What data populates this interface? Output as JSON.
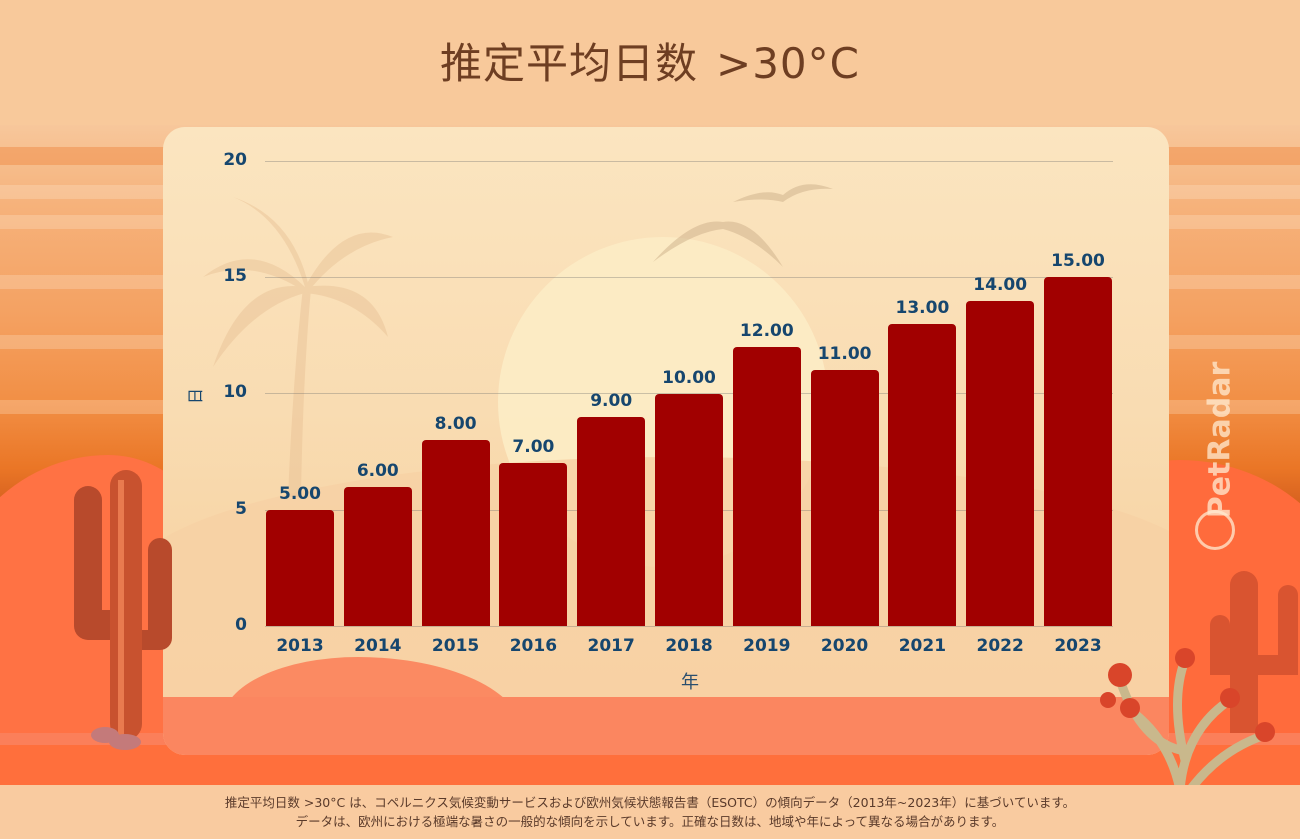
{
  "title": {
    "main": "推定平均日数",
    "suffix": ">30°C"
  },
  "chart_data": {
    "type": "bar",
    "title": "推定平均日数 >30°C",
    "xlabel": "年",
    "ylabel": "日",
    "categories": [
      "2013",
      "2014",
      "2015",
      "2016",
      "2017",
      "2018",
      "2019",
      "2020",
      "2021",
      "2022",
      "2023"
    ],
    "values": [
      5,
      6,
      8,
      7,
      9,
      10,
      12,
      11,
      13,
      14,
      15
    ],
    "value_labels": [
      "5.00",
      "6.00",
      "8.00",
      "7.00",
      "9.00",
      "10.00",
      "12.00",
      "11.00",
      "13.00",
      "14.00",
      "15.00"
    ],
    "yticks": [
      "0",
      "5",
      "10",
      "15",
      "20"
    ],
    "ylim": [
      0,
      20
    ],
    "grid": true,
    "legend": "none",
    "bar_color": "#a10000"
  },
  "watermark": {
    "label": "PetRadar"
  },
  "footer": {
    "line1": "推定平均日数 >30°C は、コペルニクス気候変動サービスおよび欧州気候状態報告書（ESOTC）の傾向データ（2013年~2023年）に基づいています。",
    "line2": "データは、欧州における極端な暑さの一般的な傾向を示しています。正確な日数は、地域や年によって異なる場合があります。"
  },
  "colors": {
    "title": "#6e3e22",
    "axis_text": "#16466e",
    "bar": "#a10000",
    "panel": "#fbe5c0",
    "background": "#f8c99b"
  }
}
